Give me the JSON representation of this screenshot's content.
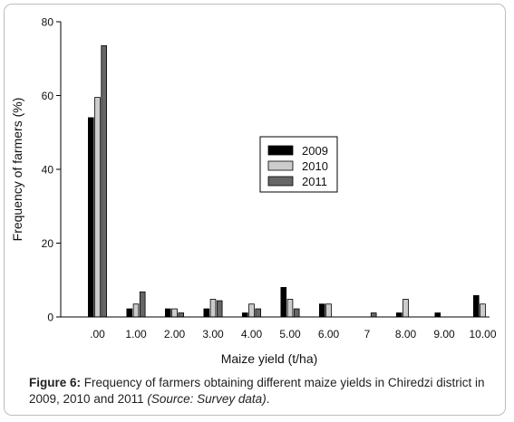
{
  "chart_data": {
    "type": "bar",
    "categories": [
      ".00",
      "1.00",
      "2.00",
      "3.00",
      "4.00",
      "5.00",
      "6.00",
      "7",
      "8.00",
      "9.00",
      "10.00"
    ],
    "series": [
      {
        "name": "2009",
        "color": "#000000",
        "values": [
          54,
          2.2,
          2.2,
          2.2,
          1.1,
          8,
          3.5,
          0,
          1.1,
          1.1,
          5.8
        ]
      },
      {
        "name": "2010",
        "color": "#cccccc",
        "values": [
          59.5,
          3.5,
          2.2,
          4.8,
          3.5,
          4.8,
          3.5,
          0,
          4.8,
          0,
          3.5
        ]
      },
      {
        "name": "2011",
        "color": "#666666",
        "values": [
          73.5,
          6.8,
          1.1,
          4.4,
          2.2,
          2.2,
          0,
          1.1,
          0,
          0,
          0
        ]
      }
    ],
    "xlabel": "Maize yield (t/ha)",
    "ylabel": "Frequency of farmers (%)",
    "ylim": [
      0,
      80
    ],
    "yticks": [
      0,
      20,
      40,
      60,
      80
    ],
    "grid": false,
    "legend_position": "center-right"
  },
  "caption": {
    "figure_label": "Figure 6:",
    "text": " Frequency of farmers obtaining different maize yields in Chiredzi district in 2009, 2010 and 2011 ",
    "source": "(Source: Survey data)",
    "end": "."
  }
}
